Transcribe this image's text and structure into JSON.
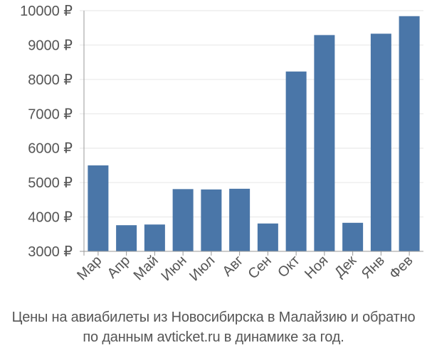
{
  "chart_data": {
    "type": "bar",
    "categories": [
      "Мар",
      "Апр",
      "Май",
      "Июн",
      "Июл",
      "Авг",
      "Сен",
      "Окт",
      "Ноя",
      "Дек",
      "Янв",
      "Фев"
    ],
    "values": [
      5500,
      3760,
      3780,
      4810,
      4800,
      4820,
      3810,
      8230,
      9290,
      3830,
      9330,
      9840
    ],
    "ylim": [
      3000,
      10000
    ],
    "yticks": [
      3000,
      4000,
      5000,
      6000,
      7000,
      8000,
      9000,
      10000
    ],
    "ytick_labels": [
      "3000 ₽",
      "4000 ₽",
      "5000 ₽",
      "6000 ₽",
      "7000 ₽",
      "8000 ₽",
      "9000 ₽",
      "10000 ₽"
    ],
    "grid": true,
    "bar_color": "#4a76a8",
    "grid_color": "#e6e6e6",
    "axis_color": "#999999",
    "label_color": "#555555"
  },
  "caption": {
    "line1": "Цены на авиабилеты из Новосибирска в Малайзию и обратно",
    "line2": "по данным avticket.ru в динамике за год."
  }
}
